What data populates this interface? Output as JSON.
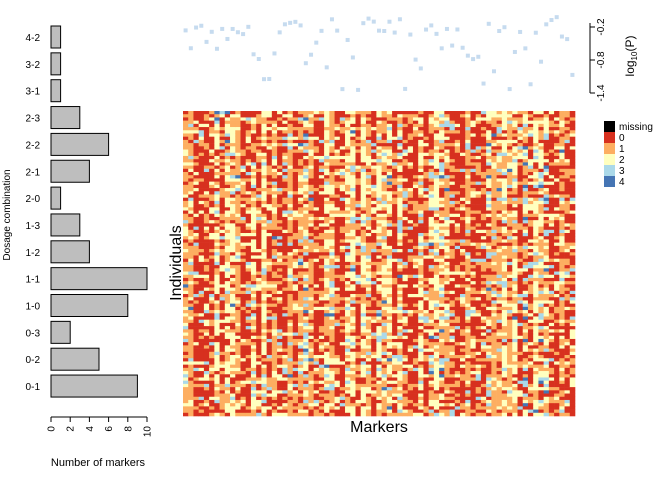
{
  "bar_chart": {
    "type": "bar",
    "orientation": "horizontal",
    "categories": [
      "4-2",
      "3-2",
      "3-1",
      "2-3",
      "2-2",
      "2-1",
      "2-0",
      "1-3",
      "1-2",
      "1-1",
      "1-0",
      "0-3",
      "0-2",
      "0-1"
    ],
    "values": [
      1,
      1,
      1,
      3,
      6,
      4,
      1,
      3,
      4,
      10,
      8,
      2,
      5,
      9
    ],
    "xlabel": "Number of markers",
    "ylabel": "Dosage combination",
    "xlim": [
      0,
      10
    ],
    "xticks": [
      "0",
      "2",
      "4",
      "6",
      "8",
      "10"
    ],
    "bar_color": "#bebebe",
    "bar_outline": "#000000"
  },
  "pvalue_plot": {
    "type": "scatter",
    "ylabel_main": "log",
    "ylabel_sub": "10",
    "ylabel_end": "(P)",
    "ylim": [
      -1.4,
      0.0
    ],
    "yticks": [
      "-0.2",
      "-0.8",
      "-1.4"
    ],
    "point_color": "#c6dbef"
  },
  "heatmap": {
    "type": "heatmap",
    "xlabel": "Markers",
    "ylabel": "Individuals",
    "n_markers": 75,
    "n_individuals": 95
  },
  "legend": {
    "items": [
      {
        "label": "missing",
        "color": "#000000"
      },
      {
        "label": "0",
        "color": "#d7301f"
      },
      {
        "label": "1",
        "color": "#fdae61"
      },
      {
        "label": "2",
        "color": "#ffffbf"
      },
      {
        "label": "3",
        "color": "#abd9e9"
      },
      {
        "label": "4",
        "color": "#4575b4"
      }
    ]
  }
}
